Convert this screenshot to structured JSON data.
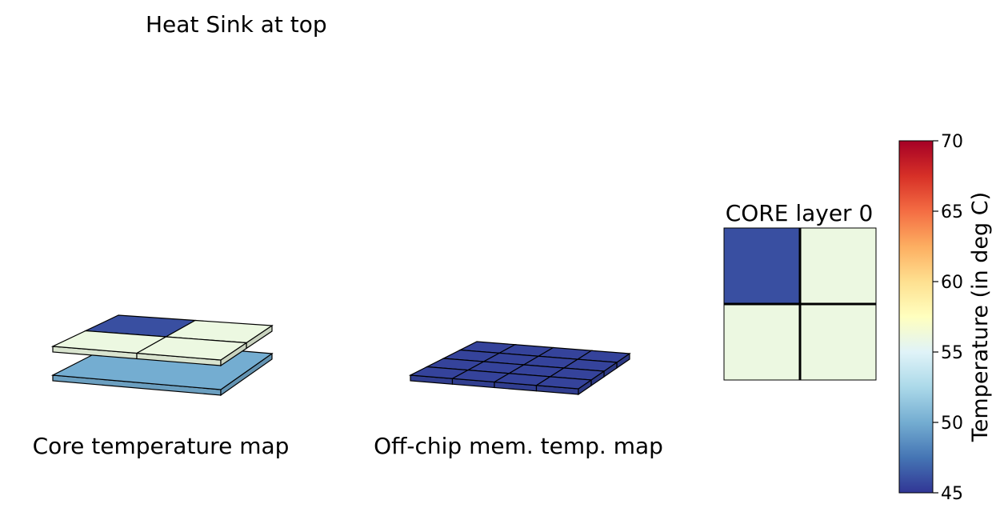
{
  "header": {
    "heat_sink_label": "Heat Sink at top"
  },
  "panels": {
    "core_map_caption": "Core temperature map",
    "mem_map_caption": "Off-chip mem. temp. map",
    "core_layer_title": "CORE layer 0"
  },
  "colorbar": {
    "label": "Temperature (in deg C)",
    "min": 45,
    "max": 70,
    "ticks": [
      45,
      50,
      55,
      60,
      65,
      70
    ],
    "colormap": "RdYlBu_r"
  },
  "chart_data": [
    {
      "type": "heatmap",
      "title": "Core temperature map",
      "layers": [
        {
          "name": "top",
          "grid": [
            [
              46,
              56
            ],
            [
              56,
              56
            ]
          ]
        },
        {
          "name": "bottom",
          "grid": [
            [
              50
            ]
          ]
        }
      ],
      "colormap": "RdYlBu_r",
      "vmin": 45,
      "vmax": 70
    },
    {
      "type": "heatmap",
      "title": "Off-chip mem. temp. map",
      "grid": [
        [
          45.5,
          45.5,
          45.5,
          45.5
        ],
        [
          45.5,
          45.5,
          45.5,
          45.5
        ],
        [
          45.5,
          45.5,
          45.5,
          45.5
        ],
        [
          45.5,
          45.5,
          45.5,
          45.5
        ]
      ],
      "colormap": "RdYlBu_r",
      "vmin": 45,
      "vmax": 70
    },
    {
      "type": "heatmap",
      "title": "CORE layer 0",
      "grid": [
        [
          46,
          56
        ],
        [
          56,
          56
        ]
      ],
      "colormap": "RdYlBu_r",
      "vmin": 45,
      "vmax": 70
    }
  ]
}
